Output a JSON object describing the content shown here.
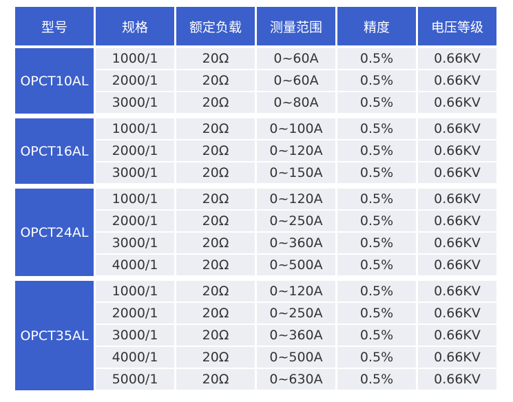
{
  "table": {
    "header": [
      "型号",
      "规格",
      "额定负载",
      "测量范围",
      "精度",
      "电压等级"
    ],
    "groups": [
      {
        "model": "OPCT10AL",
        "rows": [
          [
            "1000/1",
            "20Ω",
            "0~60A",
            "0.5%",
            "0.66KV"
          ],
          [
            "2000/1",
            "20Ω",
            "0~60A",
            "0.5%",
            "0.66KV"
          ],
          [
            "3000/1",
            "20Ω",
            "0~80A",
            "0.5%",
            "0.66KV"
          ]
        ]
      },
      {
        "model": "OPCT16AL",
        "rows": [
          [
            "1000/1",
            "20Ω",
            "0~100A",
            "0.5%",
            "0.66KV"
          ],
          [
            "2000/1",
            "20Ω",
            "0~120A",
            "0.5%",
            "0.66KV"
          ],
          [
            "3000/1",
            "20Ω",
            "0~150A",
            "0.5%",
            "0.66KV"
          ]
        ]
      },
      {
        "model": "OPCT24AL",
        "rows": [
          [
            "1000/1",
            "20Ω",
            "0~120A",
            "0.5%",
            "0.66KV"
          ],
          [
            "2000/1",
            "20Ω",
            "0~250A",
            "0.5%",
            "0.66KV"
          ],
          [
            "3000/1",
            "20Ω",
            "0~360A",
            "0.5%",
            "0.66KV"
          ],
          [
            "4000/1",
            "20Ω",
            "0~500A",
            "0.5%",
            "0.66KV"
          ]
        ]
      },
      {
        "model": "OPCT35AL",
        "rows": [
          [
            "1000/1",
            "20Ω",
            "0~120A",
            "0.5%",
            "0.66KV"
          ],
          [
            "2000/1",
            "20Ω",
            "0~250A",
            "0.5%",
            "0.66KV"
          ],
          [
            "3000/1",
            "20Ω",
            "0~360A",
            "0.5%",
            "0.66KV"
          ],
          [
            "4000/1",
            "20Ω",
            "0~500A",
            "0.5%",
            "0.66KV"
          ],
          [
            "5000/1",
            "20Ω",
            "0~630A",
            "0.5%",
            "0.66KV"
          ]
        ]
      }
    ]
  }
}
